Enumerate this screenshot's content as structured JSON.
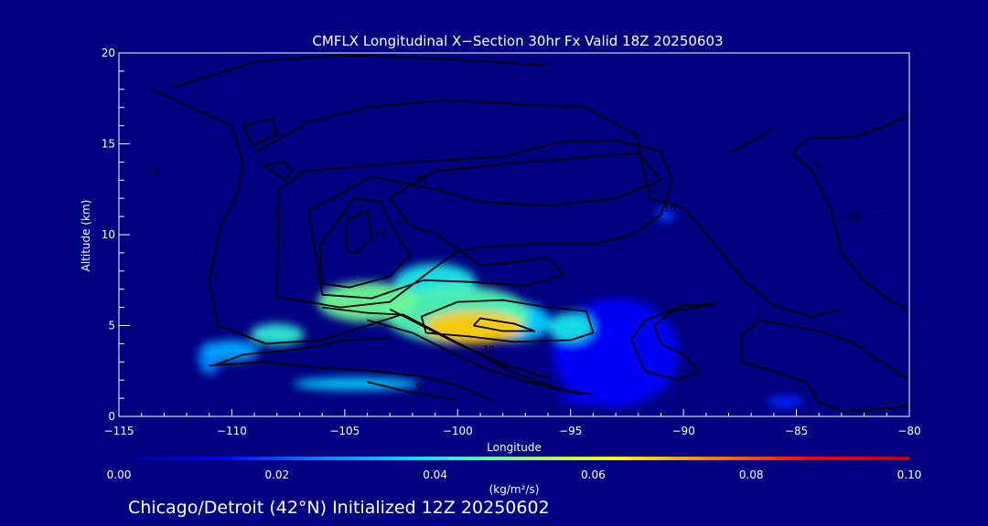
{
  "chart_data": {
    "type": "heatmap",
    "title": "CMFLX Longitudinal X−Section 30hr  Fx Valid 18Z 20250603",
    "xlabel": "Longitude",
    "ylabel": "Altitude (km)",
    "xlim": [
      -115,
      -80
    ],
    "ylim": [
      0,
      20
    ],
    "x_ticks": [
      -115,
      -110,
      -105,
      -100,
      -95,
      -90,
      -85,
      -80
    ],
    "x_tick_labels": [
      "−115",
      "−110",
      "−105",
      "−100",
      "−95",
      "−90",
      "−85",
      "−80"
    ],
    "y_ticks": [
      0,
      5,
      10,
      15,
      20
    ],
    "y_tick_labels": [
      "0",
      "5",
      "10",
      "15",
      "20"
    ],
    "colorbar": {
      "min": 0.0,
      "max": 0.1,
      "ticks": [
        0.0,
        0.02,
        0.04,
        0.06,
        0.08,
        0.1
      ],
      "tick_labels": [
        "0.00",
        "0.02",
        "0.04",
        "0.06",
        "0.08",
        "0.10"
      ],
      "label": "(kg/m²/s)",
      "colors": [
        "#000080",
        "#0000ff",
        "#0080ff",
        "#00e0ff",
        "#80ff80",
        "#ffff00",
        "#ff8000",
        "#ff0000",
        "#c00000"
      ]
    },
    "flux_blobs": [
      {
        "x": -99.3,
        "y": 4.9,
        "rx": 2.2,
        "ry": 0.9,
        "value": 0.068
      },
      {
        "x": -100.0,
        "y": 5.6,
        "rx": 3.2,
        "ry": 1.6,
        "value": 0.045
      },
      {
        "x": -104.0,
        "y": 6.3,
        "rx": 2.2,
        "ry": 1.1,
        "value": 0.048
      },
      {
        "x": -101.0,
        "y": 7.4,
        "rx": 1.8,
        "ry": 1.0,
        "value": 0.04
      },
      {
        "x": -97.5,
        "y": 5.2,
        "rx": 1.6,
        "ry": 1.1,
        "value": 0.035
      },
      {
        "x": -95.0,
        "y": 4.9,
        "rx": 1.0,
        "ry": 0.8,
        "value": 0.04
      },
      {
        "x": -108.0,
        "y": 4.5,
        "rx": 1.2,
        "ry": 0.6,
        "value": 0.042
      },
      {
        "x": -110.0,
        "y": 3.6,
        "rx": 1.2,
        "ry": 0.6,
        "value": 0.03
      },
      {
        "x": -111.0,
        "y": 3.2,
        "rx": 0.5,
        "ry": 0.9,
        "value": 0.025
      },
      {
        "x": -104.5,
        "y": 1.8,
        "rx": 2.8,
        "ry": 0.35,
        "value": 0.035
      },
      {
        "x": -93.0,
        "y": 3.5,
        "rx": 2.8,
        "ry": 3.0,
        "value": 0.012
      },
      {
        "x": -90.8,
        "y": 11.1,
        "rx": 0.4,
        "ry": 0.4,
        "value": 0.018
      },
      {
        "x": -85.5,
        "y": 0.8,
        "rx": 0.8,
        "ry": 0.35,
        "value": 0.016
      },
      {
        "x": -94.0,
        "y": 1.0,
        "rx": 1.6,
        "ry": 0.4,
        "value": 0.01
      }
    ],
    "contours": [
      {
        "label": "0",
        "points": [
          [
            -112.6,
            18.1
          ],
          [
            -109.0,
            19.5
          ],
          [
            -105.2,
            19.9
          ],
          [
            -102.8,
            19.8
          ],
          [
            -99.5,
            19.6
          ],
          [
            -96.0,
            19.3
          ]
        ]
      },
      {
        "label": "10",
        "points": [
          [
            -104.9,
            9.1
          ],
          [
            -104.9,
            10.8
          ],
          [
            -104.0,
            11.3
          ],
          [
            -103.8,
            9.8
          ],
          [
            -104.5,
            9.0
          ],
          [
            -104.9,
            9.1
          ]
        ]
      },
      {
        "label": "10",
        "points": [
          [
            -106.0,
            7.3
          ],
          [
            -106.1,
            9.4
          ],
          [
            -104.6,
            12.0
          ],
          [
            -103.4,
            11.8
          ],
          [
            -102.9,
            10.4
          ],
          [
            -102.1,
            8.9
          ],
          [
            -103.0,
            7.7
          ],
          [
            -104.8,
            7.1
          ],
          [
            -106.0,
            7.3
          ]
        ]
      },
      {
        "label": "20",
        "points": [
          [
            -106.0,
            6.7
          ],
          [
            -106.6,
            11.3
          ],
          [
            -103.8,
            13.2
          ],
          [
            -101.0,
            12.5
          ],
          [
            -99.0,
            11.8
          ],
          [
            -96.0,
            11.6
          ],
          [
            -93.0,
            12.0
          ],
          [
            -91.0,
            13.0
          ],
          [
            -92.0,
            14.5
          ],
          [
            -97.0,
            14.0
          ],
          [
            -101.0,
            13.5
          ],
          [
            -102.0,
            12.8
          ],
          [
            -103.0,
            12.0
          ],
          [
            -102.0,
            10.4
          ],
          [
            -101.0,
            10.1
          ],
          [
            -99.0,
            8.3
          ],
          [
            -96.0,
            8.7
          ],
          [
            -95.3,
            7.8
          ],
          [
            -97.0,
            7.2
          ],
          [
            -99.5,
            7.4
          ],
          [
            -101.5,
            7.5
          ],
          [
            -103.8,
            6.5
          ],
          [
            -106.0,
            6.7
          ]
        ]
      },
      {
        "label": "10",
        "points": [
          [
            -108.0,
            6.6
          ],
          [
            -107.9,
            12.5
          ],
          [
            -106.8,
            13.5
          ],
          [
            -102.0,
            14.0
          ],
          [
            -98.0,
            14.3
          ],
          [
            -95.5,
            15.1
          ],
          [
            -93.0,
            15.2
          ],
          [
            -91.0,
            14.6
          ],
          [
            -90.5,
            13.0
          ],
          [
            -91.0,
            11.1
          ],
          [
            -92.2,
            10.0
          ],
          [
            -94.0,
            9.5
          ],
          [
            -96.7,
            9.5
          ],
          [
            -99.0,
            9.3
          ],
          [
            -100.0,
            9.1
          ],
          [
            -101.0,
            8.2
          ],
          [
            -103.0,
            6.3
          ],
          [
            -105.2,
            6.0
          ],
          [
            -108.0,
            6.6
          ]
        ]
      },
      {
        "label": "",
        "points": [
          [
            -108.6,
            13.8
          ],
          [
            -107.7,
            14.0
          ],
          [
            -107.3,
            13.6
          ],
          [
            -107.6,
            13.0
          ],
          [
            -108.6,
            13.8
          ]
        ]
      },
      {
        "label": "",
        "points": [
          [
            -109.1,
            14.9
          ],
          [
            -108.0,
            15.5
          ],
          [
            -108.2,
            16.4
          ],
          [
            -109.5,
            16.0
          ],
          [
            -109.1,
            14.9
          ]
        ]
      },
      {
        "label": "5",
        "points": [
          [
            -113.5,
            18.0
          ],
          [
            -112.0,
            17.1
          ],
          [
            -110.0,
            16.0
          ],
          [
            -109.5,
            14.0
          ],
          [
            -109.8,
            12.0
          ],
          [
            -110.5,
            10.5
          ],
          [
            -111.0,
            7.5
          ],
          [
            -110.6,
            5.0
          ],
          [
            -108.5,
            4.0
          ],
          [
            -106.0,
            4.2
          ],
          [
            -104.0,
            5.0
          ],
          [
            -102.5,
            5.6
          ]
        ]
      },
      {
        "label": "5",
        "points": [
          [
            -109.0,
            14.5
          ],
          [
            -106.6,
            16.2
          ],
          [
            -104.1,
            17.0
          ],
          [
            -100.7,
            17.4
          ],
          [
            -97.5,
            17.2
          ],
          [
            -94.3,
            17.0
          ],
          [
            -92.1,
            15.5
          ],
          [
            -91.5,
            12.0
          ],
          [
            -90.0,
            11.5
          ],
          [
            -89.3,
            10.5
          ],
          [
            -88.3,
            9.0
          ],
          [
            -87.4,
            7.6
          ],
          [
            -86.0,
            6.1
          ],
          [
            -84.3,
            5.5
          ],
          [
            -83.0,
            5.9
          ]
        ]
      },
      {
        "label": "",
        "points": [
          [
            -86.0,
            15.9
          ],
          [
            -87.0,
            15.1
          ],
          [
            -88.0,
            14.5
          ]
        ]
      },
      {
        "label": "0",
        "points": [
          [
            -80.0,
            16.6
          ],
          [
            -81.0,
            16.0
          ],
          [
            -82.4,
            15.4
          ],
          [
            -84.5,
            15.3
          ],
          [
            -85.2,
            14.5
          ],
          [
            -84.3,
            13.5
          ],
          [
            -83.5,
            11.5
          ],
          [
            -83.0,
            9.0
          ],
          [
            -82.0,
            7.5
          ],
          [
            -81.0,
            6.5
          ],
          [
            -80.0,
            5.8
          ]
        ]
      },
      {
        "label": "",
        "points": [
          [
            -80.0,
            2.0
          ],
          [
            -81.0,
            2.8
          ],
          [
            -82.4,
            4.0
          ],
          [
            -84.0,
            4.7
          ],
          [
            -86.6,
            5.3
          ],
          [
            -87.4,
            4.5
          ],
          [
            -87.4,
            3.0
          ],
          [
            -86.0,
            2.5
          ],
          [
            -84.6,
            1.9
          ],
          [
            -84.0,
            0.8
          ],
          [
            -83.0,
            0.3
          ],
          [
            -81.5,
            0.4
          ],
          [
            -80.0,
            0.6
          ]
        ]
      },
      {
        "label": "",
        "points": [
          [
            -88.6,
            6.2
          ],
          [
            -90.5,
            5.8
          ],
          [
            -91.3,
            5.0
          ],
          [
            -91.0,
            4.0
          ],
          [
            -90.0,
            3.4
          ],
          [
            -89.3,
            2.5
          ],
          [
            -90.2,
            2.0
          ],
          [
            -91.7,
            2.5
          ],
          [
            -92.3,
            4.2
          ],
          [
            -91.7,
            5.3
          ],
          [
            -90.0,
            6.1
          ],
          [
            -88.6,
            6.2
          ]
        ]
      },
      {
        "label": "",
        "points": [
          [
            -101.4,
            4.6
          ],
          [
            -101.6,
            5.5
          ],
          [
            -100.0,
            6.3
          ],
          [
            -98.0,
            6.4
          ],
          [
            -96.0,
            6.0
          ],
          [
            -94.3,
            5.8
          ],
          [
            -94.0,
            4.6
          ],
          [
            -95.0,
            4.2
          ],
          [
            -97.5,
            4.1
          ],
          [
            -99.5,
            4.4
          ],
          [
            -101.4,
            4.6
          ]
        ]
      },
      {
        "label": "",
        "points": [
          [
            -99.3,
            5.0
          ],
          [
            -99.0,
            5.4
          ],
          [
            -97.5,
            5.1
          ],
          [
            -96.6,
            4.7
          ],
          [
            -98.0,
            4.7
          ],
          [
            -99.3,
            5.0
          ]
        ]
      },
      {
        "label": "10",
        "points": [
          [
            -106.0,
            6.0
          ],
          [
            -104.0,
            5.7
          ],
          [
            -102.4,
            5.6
          ],
          [
            -100.7,
            4.5
          ],
          [
            -99.0,
            3.4
          ],
          [
            -97.5,
            2.4
          ],
          [
            -95.5,
            1.5
          ],
          [
            -94.0,
            1.2
          ]
        ]
      },
      {
        "label": "20",
        "points": [
          [
            -104.0,
            5.3
          ],
          [
            -102.0,
            4.6
          ],
          [
            -100.4,
            3.6
          ],
          [
            -98.5,
            2.5
          ],
          [
            -96.5,
            1.8
          ],
          [
            -94.5,
            1.2
          ]
        ]
      },
      {
        "label": "",
        "points": [
          [
            -103.0,
            5.9
          ],
          [
            -101.6,
            5.0
          ],
          [
            -100.0,
            4.0
          ],
          [
            -98.0,
            2.9
          ],
          [
            -96.0,
            2.1
          ]
        ]
      },
      {
        "label": "",
        "points": [
          [
            -111.0,
            2.8
          ],
          [
            -108.6,
            3.0
          ],
          [
            -106.2,
            2.7
          ],
          [
            -103.8,
            2.5
          ],
          [
            -101.6,
            2.2
          ],
          [
            -100.0,
            1.7
          ],
          [
            -98.5,
            0.9
          ]
        ]
      },
      {
        "label": "",
        "points": [
          [
            -110.8,
            2.8
          ],
          [
            -109.5,
            3.4
          ],
          [
            -107.0,
            3.7
          ],
          [
            -105.0,
            4.2
          ],
          [
            -103.0,
            4.3
          ]
        ]
      },
      {
        "label": "5",
        "points": [
          [
            -104.0,
            1.9
          ],
          [
            -102.0,
            1.3
          ],
          [
            -100.0,
            0.9
          ]
        ]
      }
    ],
    "dotted_contours": [
      {
        "label": "-10",
        "points": [
          [
            -114.0,
            13.5
          ],
          [
            -113.0,
            12.0
          ],
          [
            -112.0,
            10.0
          ],
          [
            -111.5,
            8.0
          ]
        ]
      },
      {
        "label": "-10",
        "points": [
          [
            -83.0,
            11.0
          ],
          [
            -81.0,
            11.3
          ],
          [
            -80.0,
            11.8
          ]
        ]
      },
      {
        "label": "-10",
        "points": [
          [
            -82.5,
            0.4
          ],
          [
            -81.0,
            0.3
          ]
        ]
      }
    ],
    "legend": "colorbar-bottom",
    "grid": false
  },
  "footer": {
    "caption": "Chicago/Detroit (42°N) Initialized 12Z 20250602"
  }
}
